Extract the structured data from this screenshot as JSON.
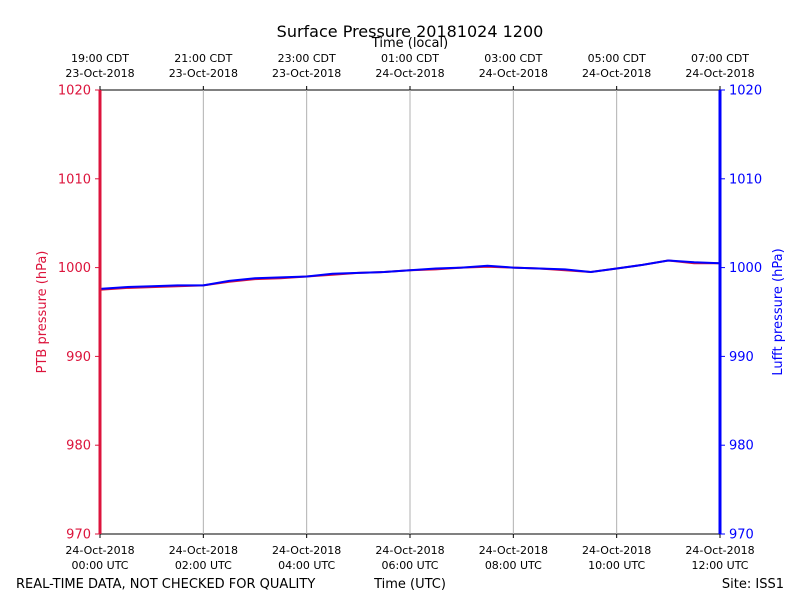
{
  "chart_data": {
    "type": "line",
    "title": "Surface Pressure 20181024 1200",
    "top_xlabel": "Time (local)",
    "xlabel": "Time (UTC)",
    "ylabel_left": "PTB pressure (hPa)",
    "ylabel_right": "Lufft pressure (hPa)",
    "ylim": [
      970,
      1020
    ],
    "yticks": [
      970,
      980,
      990,
      1000,
      1010,
      1020
    ],
    "xlim_hours_utc": [
      0,
      12
    ],
    "grid": "vertical",
    "xticks_bottom": [
      {
        "hour": 0,
        "line1": "24-Oct-2018",
        "line2": "00:00 UTC"
      },
      {
        "hour": 2,
        "line1": "24-Oct-2018",
        "line2": "02:00 UTC"
      },
      {
        "hour": 4,
        "line1": "24-Oct-2018",
        "line2": "04:00 UTC"
      },
      {
        "hour": 6,
        "line1": "24-Oct-2018",
        "line2": "06:00 UTC"
      },
      {
        "hour": 8,
        "line1": "24-Oct-2018",
        "line2": "08:00 UTC"
      },
      {
        "hour": 10,
        "line1": "24-Oct-2018",
        "line2": "10:00 UTC"
      },
      {
        "hour": 12,
        "line1": "24-Oct-2018",
        "line2": "12:00 UTC"
      }
    ],
    "xticks_top": [
      {
        "hour": 0,
        "line1": "19:00 CDT",
        "line2": "23-Oct-2018"
      },
      {
        "hour": 2,
        "line1": "21:00 CDT",
        "line2": "23-Oct-2018"
      },
      {
        "hour": 4,
        "line1": "23:00 CDT",
        "line2": "23-Oct-2018"
      },
      {
        "hour": 6,
        "line1": "01:00 CDT",
        "line2": "24-Oct-2018"
      },
      {
        "hour": 8,
        "line1": "03:00 CDT",
        "line2": "24-Oct-2018"
      },
      {
        "hour": 10,
        "line1": "05:00 CDT",
        "line2": "24-Oct-2018"
      },
      {
        "hour": 12,
        "line1": "07:00 CDT",
        "line2": "24-Oct-2018"
      }
    ],
    "series": [
      {
        "name": "PTB pressure (hPa)",
        "color": "#dc143c",
        "x": [
          0,
          0.5,
          1,
          1.5,
          2,
          2.5,
          3,
          3.5,
          4,
          4.5,
          5,
          5.5,
          6,
          6.5,
          7,
          7.5,
          8,
          8.5,
          9,
          9.5,
          10,
          10.5,
          11,
          11.5,
          12
        ],
        "values": [
          997.5,
          997.7,
          997.8,
          997.9,
          998.0,
          998.4,
          998.7,
          998.8,
          999.0,
          999.2,
          999.4,
          999.5,
          999.7,
          999.8,
          1000.0,
          1000.1,
          1000.0,
          999.9,
          999.7,
          999.5,
          999.9,
          1000.3,
          1000.8,
          1000.5,
          1000.5
        ]
      },
      {
        "name": "Lufft pressure (hPa)",
        "color": "#0000ff",
        "x": [
          0,
          0.5,
          1,
          1.5,
          2,
          2.5,
          3,
          3.5,
          4,
          4.5,
          5,
          5.5,
          6,
          6.5,
          7,
          7.5,
          8,
          8.5,
          9,
          9.5,
          10,
          10.5,
          11,
          11.5,
          12
        ],
        "values": [
          997.6,
          997.8,
          997.9,
          998.0,
          998.0,
          998.5,
          998.8,
          998.9,
          999.0,
          999.3,
          999.4,
          999.5,
          999.7,
          999.9,
          1000.0,
          1000.2,
          1000.0,
          999.9,
          999.8,
          999.5,
          999.9,
          1000.3,
          1000.8,
          1000.6,
          1000.5
        ]
      }
    ],
    "left_axis_color": "#dc143c",
    "right_axis_color": "#0000ff"
  },
  "footer": {
    "left": "REAL-TIME DATA, NOT CHECKED FOR QUALITY",
    "center": "Time (UTC)",
    "right": "Site: ISS1"
  }
}
